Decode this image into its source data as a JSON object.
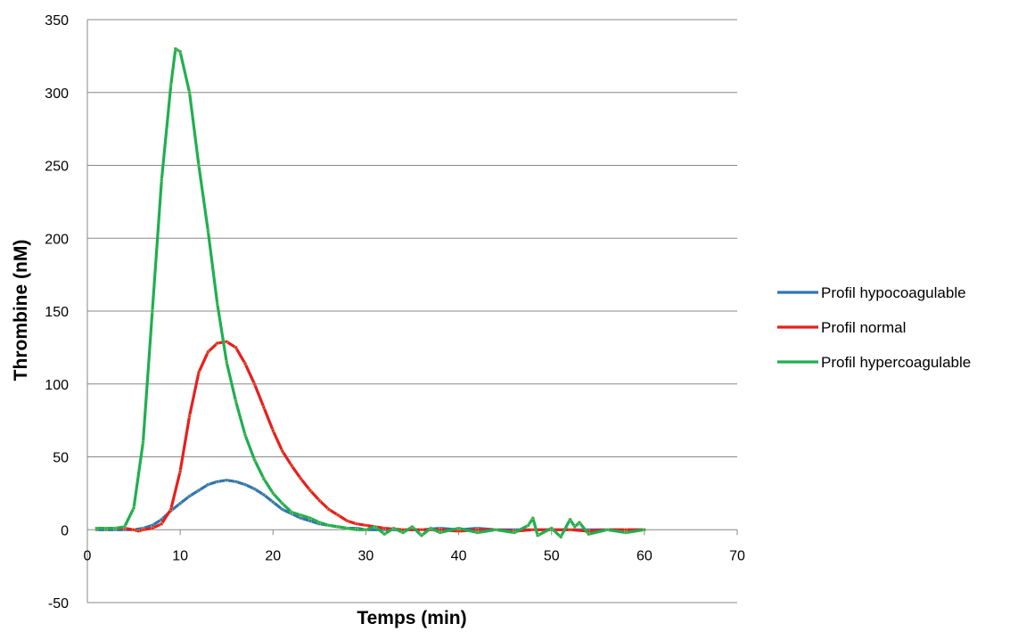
{
  "chart_data": {
    "type": "line",
    "title": "",
    "xlabel": "Temps (min)",
    "ylabel": "Thrombine (nM)",
    "xlim": [
      0,
      70
    ],
    "ylim": [
      -50,
      350
    ],
    "xticks": [
      0,
      10,
      20,
      30,
      40,
      50,
      60,
      70
    ],
    "yticks": [
      -50,
      0,
      50,
      100,
      150,
      200,
      250,
      300,
      350
    ],
    "grid": "horizontal",
    "legend_position": "right",
    "series": [
      {
        "name": "Profil hypocoagulable",
        "color": "#2E75B6",
        "x": [
          1,
          2,
          3,
          4,
          5,
          6,
          7,
          8,
          9,
          10,
          11,
          12,
          13,
          14,
          15,
          16,
          17,
          18,
          19,
          20,
          21,
          22,
          23,
          24,
          25,
          26,
          27,
          28,
          29,
          30,
          32,
          34,
          36,
          38,
          40,
          42,
          44,
          46,
          48,
          50,
          52,
          54,
          56,
          58,
          60
        ],
        "y": [
          0,
          0,
          0,
          0,
          0,
          1,
          3,
          7,
          13,
          18,
          23,
          27,
          31,
          33,
          34,
          33,
          31,
          28,
          24,
          19,
          14,
          11,
          8,
          6,
          4,
          3,
          2,
          1,
          1,
          0,
          0,
          0,
          0,
          1,
          0,
          1,
          0,
          0,
          0,
          0,
          0,
          0,
          0,
          0,
          0
        ]
      },
      {
        "name": "Profil normal",
        "color": "#E81E1E",
        "x": [
          1,
          2,
          3,
          4,
          5,
          5.5,
          6,
          7,
          8,
          9,
          10,
          11,
          12,
          13,
          14,
          15,
          16,
          17,
          18,
          19,
          20,
          21,
          22,
          23,
          24,
          25,
          26,
          27,
          28,
          29,
          30,
          32,
          34,
          36,
          38,
          40,
          42,
          44,
          46,
          48,
          50,
          52,
          54,
          56,
          58,
          60
        ],
        "y": [
          1,
          1,
          1,
          1,
          0,
          -1,
          0,
          1,
          4,
          14,
          40,
          78,
          108,
          122,
          128,
          129,
          125,
          114,
          100,
          84,
          68,
          54,
          44,
          35,
          27,
          20,
          14,
          10,
          6,
          4,
          3,
          1,
          0,
          0,
          0,
          -1,
          0,
          0,
          -1,
          0,
          0,
          0,
          -1,
          0,
          0,
          0
        ]
      },
      {
        "name": "Profil hypercoagulable",
        "color": "#1EAF50",
        "x": [
          1,
          2,
          3,
          4,
          5,
          6,
          7,
          8,
          9,
          9.5,
          10,
          11,
          12,
          13,
          14,
          15,
          16,
          17,
          18,
          19,
          20,
          21,
          22,
          23,
          24,
          25,
          26,
          27,
          28,
          29,
          30,
          31,
          32,
          33,
          34,
          35,
          36,
          37,
          38,
          40,
          42,
          44,
          46,
          47.5,
          48,
          48.5,
          50,
          51,
          52,
          52.5,
          53,
          54,
          56,
          58,
          60
        ],
        "y": [
          1,
          1,
          1,
          2,
          15,
          60,
          150,
          240,
          305,
          330,
          328,
          300,
          250,
          205,
          155,
          115,
          88,
          65,
          48,
          35,
          25,
          18,
          12,
          10,
          8,
          5,
          3,
          2,
          1,
          0,
          0,
          2,
          -3,
          1,
          -2,
          2,
          -4,
          1,
          -2,
          1,
          -2,
          0,
          -2,
          3,
          8,
          -4,
          1,
          -5,
          7,
          2,
          5,
          -3,
          0,
          -2,
          0
        ]
      }
    ]
  }
}
